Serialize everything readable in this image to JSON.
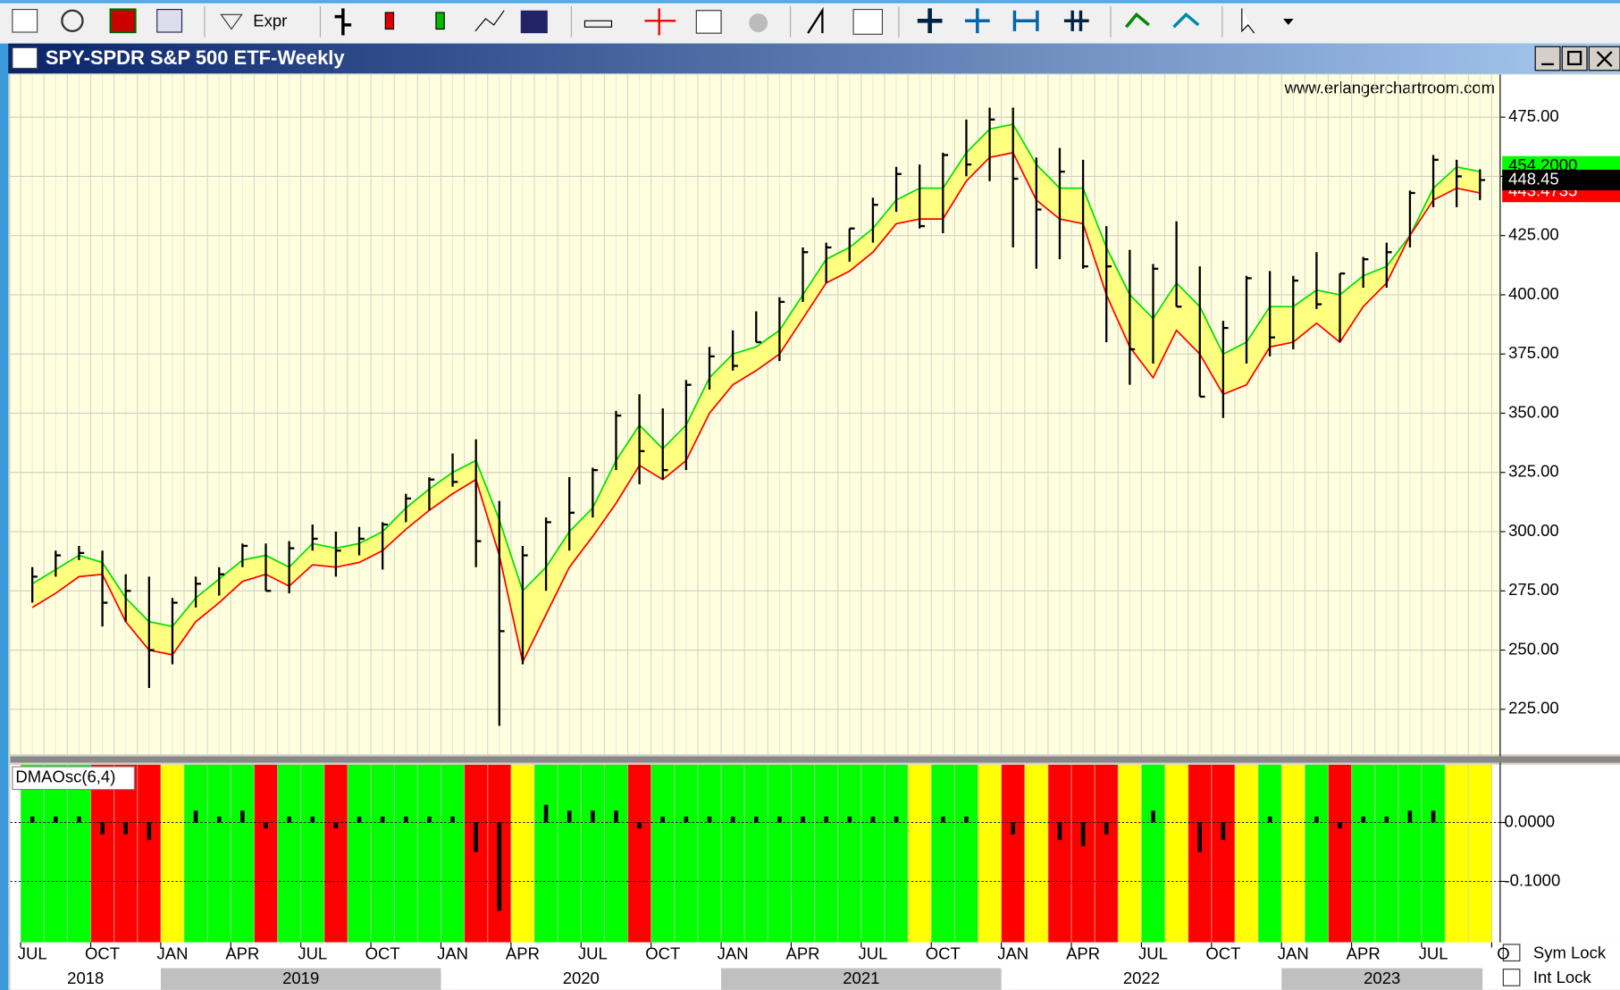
{
  "toolbar": {
    "expr": "Expr"
  },
  "window": {
    "title": "SPY-SPDR S&P 500 ETF-Weekly",
    "watermark": "www.erlangerchartroom.com"
  },
  "chart_data": [
    {
      "type": "hlc",
      "x": [
        "2018-07",
        "2018-08",
        "2018-09",
        "2018-10",
        "2018-11",
        "2018-12",
        "2019-01",
        "2019-02",
        "2019-03",
        "2019-04",
        "2019-05",
        "2019-06",
        "2019-07",
        "2019-08",
        "2019-09",
        "2019-10",
        "2019-11",
        "2019-12",
        "2020-01",
        "2020-02",
        "2020-03",
        "2020-04",
        "2020-05",
        "2020-06",
        "2020-07",
        "2020-08",
        "2020-09",
        "2020-10",
        "2020-11",
        "2020-12",
        "2021-01",
        "2021-02",
        "2021-03",
        "2021-04",
        "2021-05",
        "2021-06",
        "2021-07",
        "2021-08",
        "2021-09",
        "2021-10",
        "2021-11",
        "2021-12",
        "2022-01",
        "2022-02",
        "2022-03",
        "2022-04",
        "2022-05",
        "2022-06",
        "2022-07",
        "2022-08",
        "2022-09",
        "2022-10",
        "2022-11",
        "2022-12",
        "2023-01",
        "2023-02",
        "2023-03",
        "2023-04",
        "2023-05",
        "2023-06",
        "2023-07",
        "2023-08",
        "2023-09"
      ],
      "high": [
        285,
        292,
        294,
        292,
        282,
        281,
        272,
        281,
        285,
        295,
        295,
        296,
        303,
        300,
        302,
        304,
        316,
        323,
        333,
        339,
        313,
        294,
        306,
        323,
        327,
        351,
        358,
        352,
        364,
        378,
        385,
        393,
        399,
        420,
        422,
        428,
        441,
        454,
        455,
        460,
        474,
        479,
        479,
        458,
        462,
        457,
        429,
        419,
        413,
        431,
        412,
        389,
        408,
        410,
        408,
        418,
        409,
        416,
        422,
        444,
        459,
        457,
        453
      ],
      "low": [
        270,
        281,
        288,
        260,
        262,
        234,
        244,
        268,
        273,
        285,
        275,
        274,
        292,
        281,
        290,
        284,
        304,
        309,
        319,
        285,
        218,
        244,
        275,
        292,
        306,
        326,
        320,
        322,
        326,
        360,
        368,
        380,
        372,
        397,
        405,
        414,
        422,
        435,
        428,
        426,
        450,
        448,
        420,
        411,
        415,
        411,
        380,
        362,
        371,
        395,
        357,
        348,
        371,
        374,
        377,
        394,
        380,
        403,
        403,
        420,
        437,
        437,
        440
      ],
      "close": [
        281,
        290,
        291,
        270,
        275,
        250,
        270,
        278,
        282,
        294,
        275,
        293,
        297,
        292,
        297,
        303,
        314,
        322,
        321,
        296,
        258,
        290,
        304,
        308,
        326,
        349,
        334,
        326,
        362,
        374,
        370,
        380,
        397,
        418,
        420,
        428,
        438,
        451,
        429,
        459,
        455,
        474,
        449,
        436,
        452,
        412,
        412,
        377,
        411,
        395,
        357,
        386,
        407,
        382,
        406,
        396,
        409,
        415,
        418,
        443,
        457,
        450,
        448.45
      ],
      "bands": [
        {
          "color": "#00e000",
          "values": [
            278,
            284,
            290,
            287,
            272,
            262,
            260,
            272,
            280,
            288,
            290,
            285,
            295,
            293,
            295,
            300,
            310,
            318,
            325,
            330,
            305,
            275,
            285,
            300,
            310,
            330,
            345,
            335,
            345,
            365,
            375,
            378,
            385,
            400,
            415,
            420,
            428,
            440,
            445,
            445,
            460,
            470,
            472,
            455,
            445,
            445,
            420,
            400,
            390,
            405,
            395,
            375,
            380,
            395,
            395,
            402,
            400,
            408,
            412,
            425,
            445,
            454,
            452
          ]
        },
        {
          "color": "#ff0000",
          "values": [
            268,
            274,
            281,
            282,
            262,
            250,
            248,
            262,
            270,
            279,
            282,
            277,
            286,
            285,
            287,
            292,
            301,
            309,
            316,
            322,
            290,
            245,
            265,
            285,
            298,
            312,
            328,
            322,
            330,
            350,
            362,
            368,
            375,
            390,
            405,
            410,
            418,
            430,
            432,
            432,
            448,
            458,
            460,
            440,
            432,
            430,
            400,
            378,
            365,
            385,
            375,
            358,
            362,
            378,
            380,
            388,
            380,
            395,
            405,
            425,
            440,
            445,
            443
          ]
        }
      ],
      "band_fill": "#ffff80",
      "bar_color": "#000000",
      "ylim": [
        206,
        493
      ],
      "yticks": [
        {
          "value": 225,
          "label": "225.00"
        },
        {
          "value": 250,
          "label": "250.00"
        },
        {
          "value": 275,
          "label": "275.00"
        },
        {
          "value": 300,
          "label": "300.00"
        },
        {
          "value": 325,
          "label": "325.00"
        },
        {
          "value": 350,
          "label": "350.00"
        },
        {
          "value": 375,
          "label": "375.00"
        },
        {
          "value": 400,
          "label": "400.00"
        },
        {
          "value": 425,
          "label": "425.00"
        },
        {
          "value": 450,
          "label": "450.00"
        },
        {
          "value": 475,
          "label": "475.00"
        }
      ],
      "last_labels": [
        {
          "value": 454.2,
          "label": "454.2000",
          "color": "#00ff00",
          "text_color": "#000000"
        },
        {
          "value": 443.4735,
          "label": "443.4735",
          "color": "#ff0000",
          "text_color": "#ffffff"
        },
        {
          "value": 448.45,
          "label": "448.45",
          "color": "#000000",
          "text_color": "#ffffff"
        }
      ],
      "grid": true
    },
    {
      "type": "osc",
      "title": "DMAOsc(6,4)",
      "values": [
        0.01,
        0.01,
        0.01,
        -0.02,
        -0.02,
        -0.03,
        0,
        0.02,
        0.01,
        0.02,
        -0.01,
        0.01,
        0.01,
        -0.01,
        0.01,
        0.01,
        0.01,
        0.01,
        0.01,
        -0.05,
        -0.15,
        0,
        0.03,
        0.02,
        0.02,
        0.02,
        -0.01,
        0.01,
        0.01,
        0.01,
        0.01,
        0.01,
        0.01,
        0.01,
        0.01,
        0.01,
        0.01,
        0.01,
        0,
        0.01,
        0.01,
        0,
        -0.02,
        0,
        -0.03,
        -0.04,
        -0.02,
        0,
        0.02,
        0,
        -0.05,
        -0.03,
        0,
        0.01,
        0,
        0.01,
        -0.01,
        0.01,
        0.01,
        0.02,
        0.02,
        0,
        0
      ],
      "zones": [
        "lime",
        "lime",
        "lime",
        "red",
        "red",
        "red",
        "yellow",
        "lime",
        "lime",
        "lime",
        "red",
        "lime",
        "lime",
        "red",
        "lime",
        "lime",
        "lime",
        "lime",
        "lime",
        "red",
        "red",
        "yellow",
        "lime",
        "lime",
        "lime",
        "lime",
        "red",
        "lime",
        "lime",
        "lime",
        "lime",
        "lime",
        "lime",
        "lime",
        "lime",
        "lime",
        "lime",
        "lime",
        "yellow",
        "lime",
        "lime",
        "yellow",
        "red",
        "yellow",
        "red",
        "red",
        "red",
        "yellow",
        "lime",
        "yellow",
        "red",
        "red",
        "yellow",
        "lime",
        "yellow",
        "lime",
        "red",
        "lime",
        "lime",
        "lime",
        "lime",
        "yellow",
        "yellow"
      ],
      "ylim": [
        -0.2035,
        0.0982
      ],
      "yticks": [
        {
          "value": 0,
          "label": "0.0000"
        },
        {
          "value": -0.1,
          "label": "-0.1000"
        }
      ],
      "xticks": [
        {
          "value": "2018-07",
          "label": "JUL"
        },
        {
          "value": "2018-10",
          "label": "OCT"
        },
        {
          "value": "2019-01",
          "label": "JAN"
        },
        {
          "value": "2019-04",
          "label": "APR"
        },
        {
          "value": "2019-07",
          "label": "JUL"
        },
        {
          "value": "2019-10",
          "label": "OCT"
        },
        {
          "value": "2020-01",
          "label": "JAN"
        },
        {
          "value": "2020-04",
          "label": "APR"
        },
        {
          "value": "2020-07",
          "label": "JUL"
        },
        {
          "value": "2020-10",
          "label": "OCT"
        },
        {
          "value": "2021-01",
          "label": "JAN"
        },
        {
          "value": "2021-04",
          "label": "APR"
        },
        {
          "value": "2021-07",
          "label": "JUL"
        },
        {
          "value": "2021-10",
          "label": "OCT"
        },
        {
          "value": "2022-01",
          "label": "JAN"
        },
        {
          "value": "2022-04",
          "label": "APR"
        },
        {
          "value": "2022-07",
          "label": "JUL"
        },
        {
          "value": "2022-10",
          "label": "OCT"
        },
        {
          "value": "2023-01",
          "label": "JAN"
        },
        {
          "value": "2023-04",
          "label": "APR"
        },
        {
          "value": "2023-07",
          "label": "JUL"
        },
        {
          "value": "2023-10",
          "label": "O"
        }
      ],
      "years": [
        2018,
        2019,
        2020,
        2021,
        2022,
        2023
      ]
    }
  ],
  "footer": {
    "sym_lock": "Sym Lock",
    "int_lock": "Int Lock"
  }
}
